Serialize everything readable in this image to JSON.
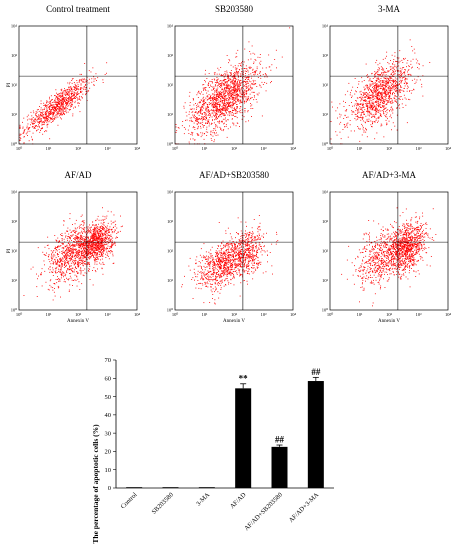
{
  "colors": {
    "dots": "#ff0000",
    "axis": "#000000",
    "bar": "#000000",
    "background": "#ffffff"
  },
  "chart_data": [
    {
      "type": "scatter",
      "layout": "grid 2x3 flow cytometry dot plots",
      "xlabel": "Annexin V",
      "ylabel": "PI",
      "axis_scale": "log",
      "xlim": [
        1,
        10000
      ],
      "ylim": [
        1,
        10000
      ],
      "tick_labels": [
        "10⁰",
        "10¹",
        "10²",
        "10³",
        "10⁴"
      ],
      "quadrant_gate": {
        "x": 200,
        "y": 200
      },
      "panels": [
        {
          "title": "Control treatment",
          "show_xlabel": false,
          "show_ylabel": true,
          "clusters": [
            {
              "cx": 20,
              "cy": 20,
              "sx": 0.55,
              "sy": 0.45,
              "rho": 0.85,
              "n": 900
            }
          ]
        },
        {
          "title": "SB203580",
          "show_xlabel": false,
          "show_ylabel": false,
          "clusters": [
            {
              "cx": 50,
              "cy": 40,
              "sx": 0.6,
              "sy": 0.6,
              "rho": 0.6,
              "n": 1500
            }
          ]
        },
        {
          "title": "3-MA",
          "show_xlabel": false,
          "show_ylabel": false,
          "clusters": [
            {
              "cx": 50,
              "cy": 50,
              "sx": 0.55,
              "sy": 0.55,
              "rho": 0.6,
              "n": 1200
            }
          ]
        },
        {
          "title": "AF/AD",
          "show_xlabel": true,
          "show_ylabel": true,
          "clusters": [
            {
              "cx": 60,
              "cy": 80,
              "sx": 0.45,
              "sy": 0.5,
              "rho": 0.4,
              "n": 800
            },
            {
              "cx": 400,
              "cy": 200,
              "sx": 0.3,
              "sy": 0.35,
              "rho": 0.3,
              "n": 900
            }
          ]
        },
        {
          "title": "AF/AD+SB203580",
          "show_xlabel": true,
          "show_ylabel": false,
          "clusters": [
            {
              "cx": 50,
              "cy": 40,
              "sx": 0.5,
              "sy": 0.45,
              "rho": 0.5,
              "n": 900
            },
            {
              "cx": 300,
              "cy": 100,
              "sx": 0.3,
              "sy": 0.4,
              "rho": 0.3,
              "n": 350
            }
          ]
        },
        {
          "title": "AF/AD+3-MA",
          "show_xlabel": true,
          "show_ylabel": false,
          "clusters": [
            {
              "cx": 70,
              "cy": 70,
              "sx": 0.45,
              "sy": 0.5,
              "rho": 0.4,
              "n": 700
            },
            {
              "cx": 450,
              "cy": 150,
              "sx": 0.3,
              "sy": 0.4,
              "rho": 0.3,
              "n": 800
            }
          ]
        }
      ]
    },
    {
      "type": "bar",
      "ylabel": "The percentage of apoptotic cells (%)",
      "ylim": [
        0,
        70
      ],
      "yticks": [
        0,
        10,
        20,
        30,
        40,
        50,
        60,
        70
      ],
      "categories": [
        "Control",
        "SB203580",
        "3-MA",
        "AF/AD",
        "AF/AD+SB203580",
        "AF/AD+3-MA"
      ],
      "values": [
        0.3,
        0.3,
        0.3,
        54.5,
        22.5,
        58.5
      ],
      "errors": [
        0,
        0,
        0,
        2.5,
        1.0,
        2.0
      ],
      "annotations": [
        "",
        "",
        "",
        "**",
        "##",
        "##"
      ],
      "grid": false
    }
  ]
}
